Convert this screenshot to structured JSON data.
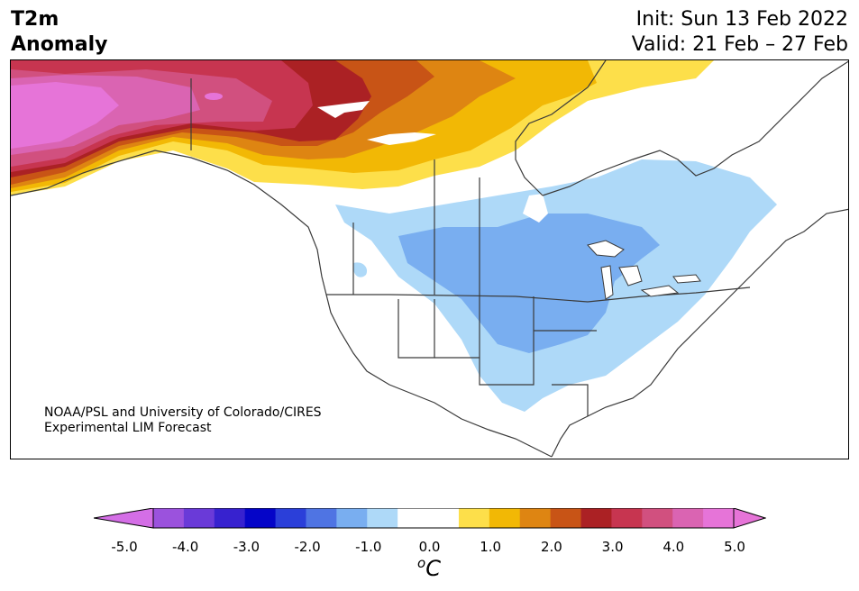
{
  "title": {
    "line1": "T2m",
    "line2": "Anomaly"
  },
  "dates": {
    "init": "Init: Sun 13 Feb 2022",
    "valid": "Valid: 21 Feb – 27 Feb"
  },
  "credit": {
    "line1": "NOAA/PSL and University of Colorado/CIRES",
    "line2": "Experimental LIM Forecast"
  },
  "colorbar": {
    "colors": [
      "#9b52dd",
      "#6a3ad8",
      "#3722cf",
      "#0505c8",
      "#2b3fd9",
      "#4f74e3",
      "#79aef0",
      "#aed9f8",
      "#ffffff",
      "#ffffff",
      "#fddf4a",
      "#f2b805",
      "#de8512",
      "#c85416",
      "#ab2124",
      "#c73550",
      "#d1507f",
      "#da64b2",
      "#e674d8"
    ],
    "low_extend_color": "#d46ee6",
    "high_extend_color": "#e674d8",
    "tick_labels": [
      "-5.0",
      "-4.0",
      "-3.0",
      "-2.0",
      "-1.0",
      "0.0",
      "1.0",
      "2.0",
      "3.0",
      "4.0",
      "5.0"
    ],
    "unit_base": "C",
    "unit_sup": "o"
  },
  "anomaly_colors": {
    "cool_light": "#aed9f8",
    "cool_mid": "#79aef0",
    "warm_yellow": "#fddf4a",
    "warm_gold": "#f2b805",
    "warm_orange": "#de8512",
    "warm_rust": "#c85416",
    "warm_red": "#ab2124",
    "warm_crimson": "#c73550",
    "warm_rose": "#d1507f",
    "warm_pink": "#da64b2",
    "warm_magenta": "#e674d8"
  }
}
